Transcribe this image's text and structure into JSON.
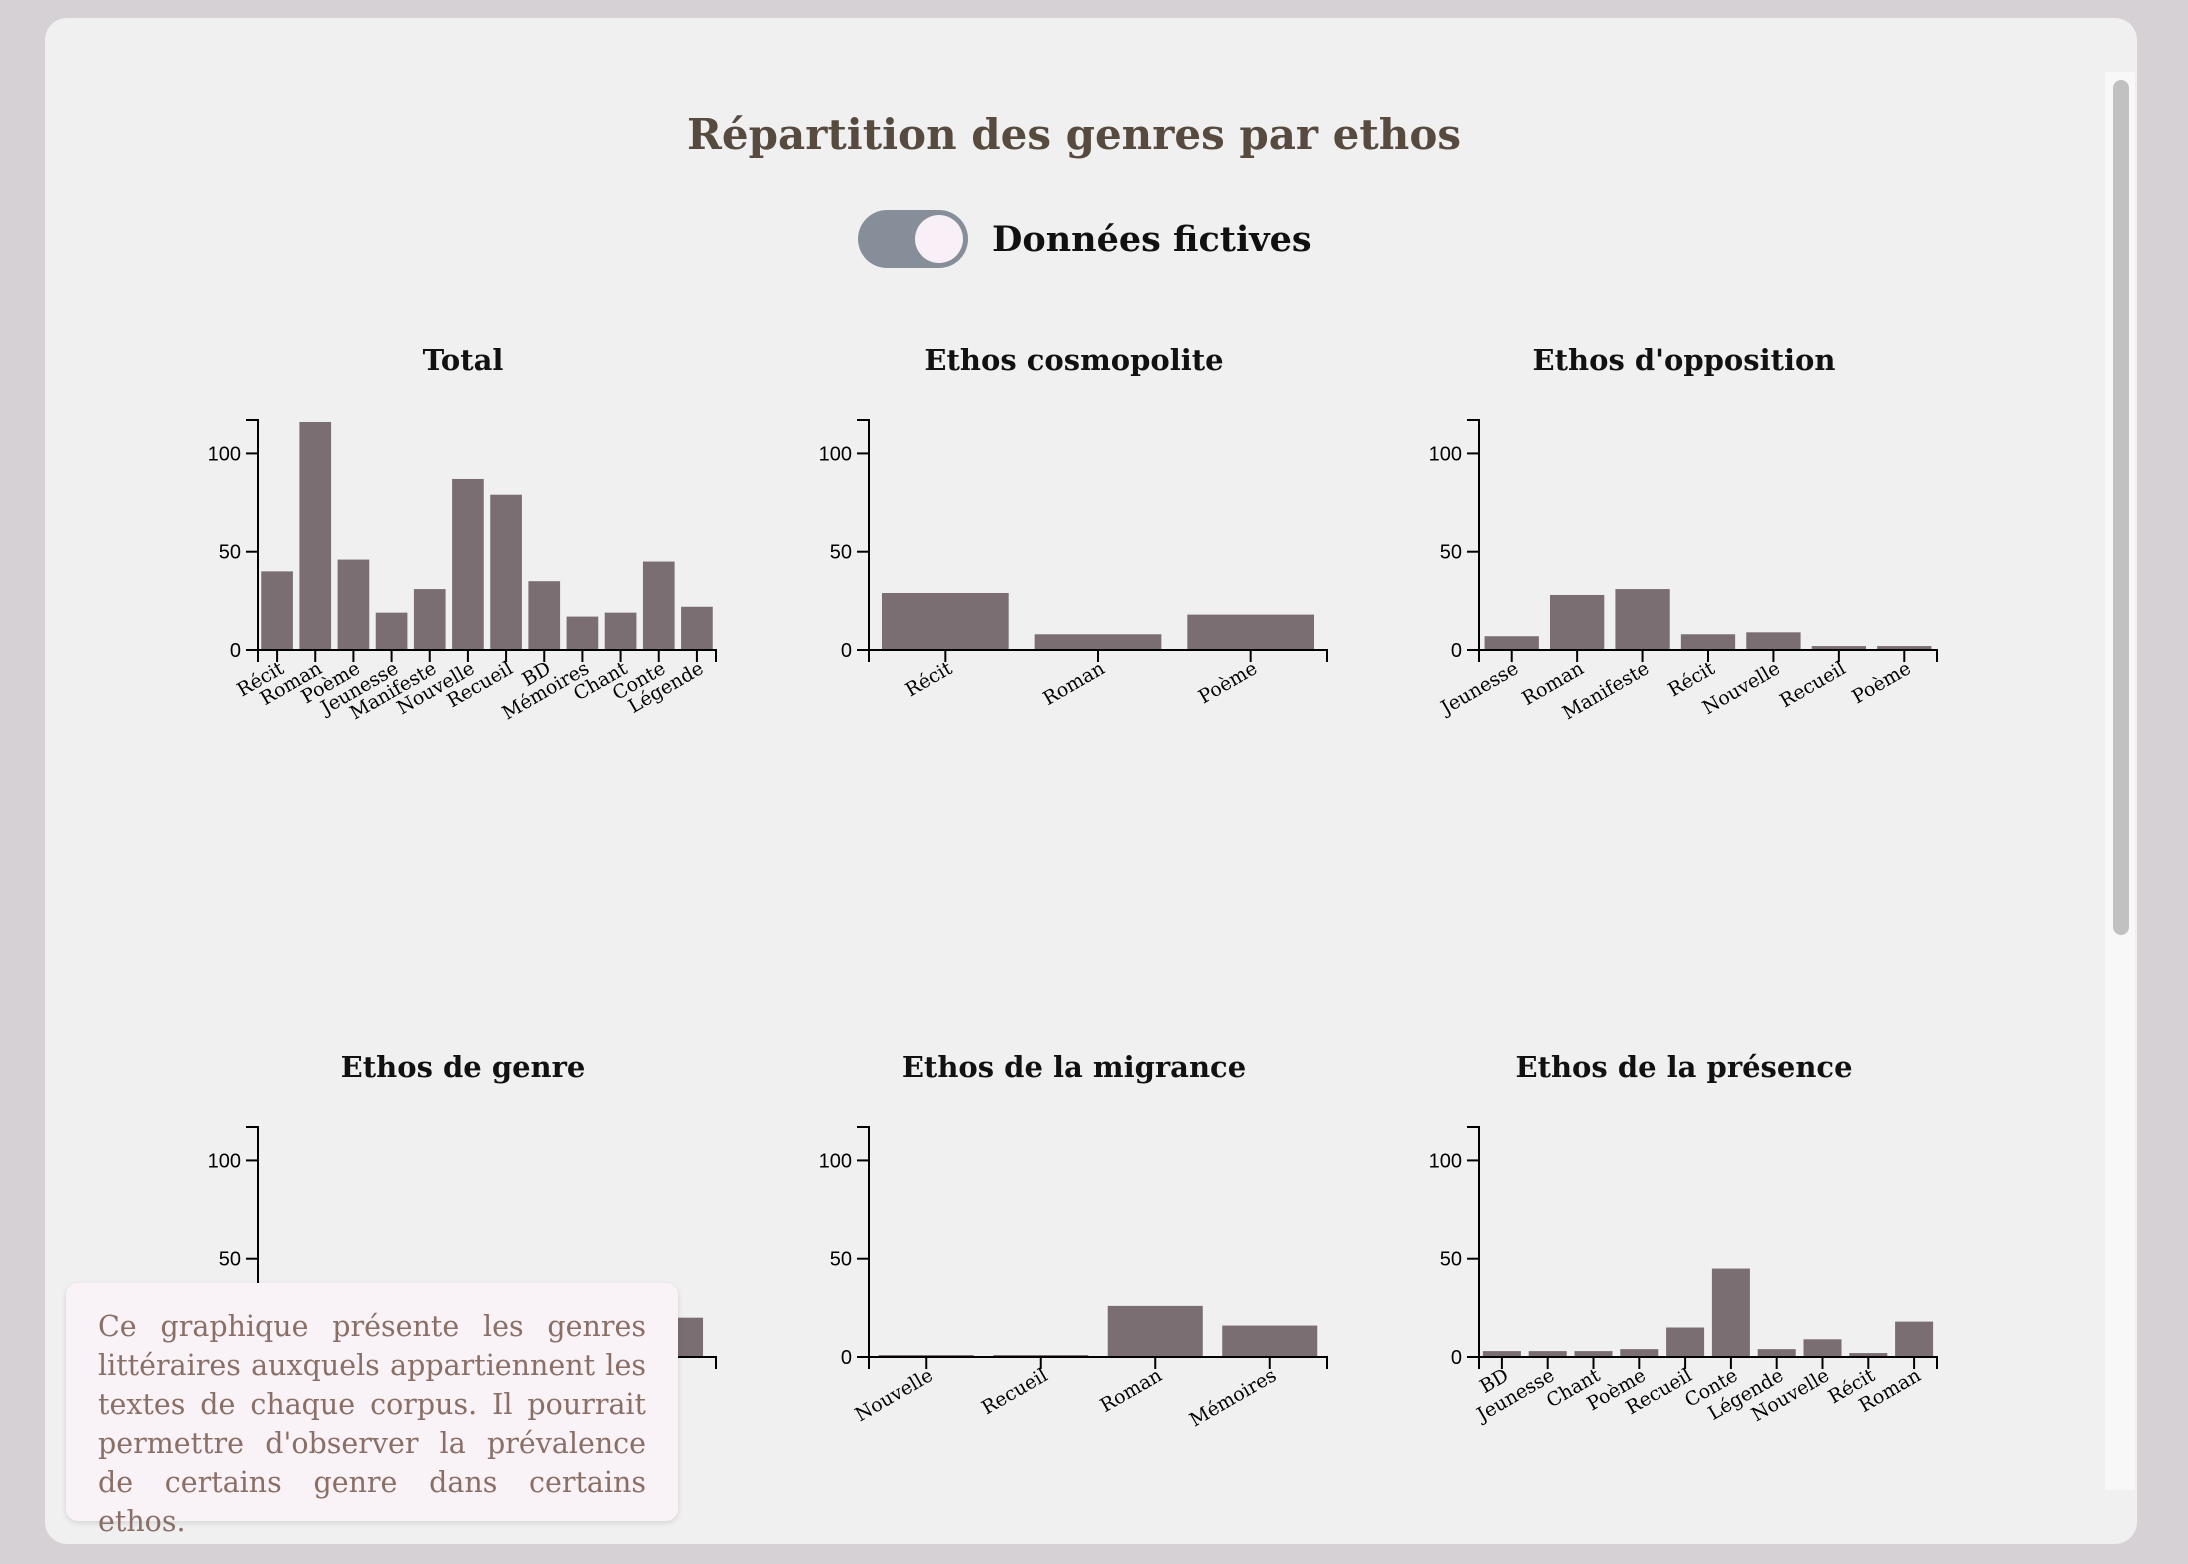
{
  "page_title": "Répartition des genres par ethos",
  "toggle": {
    "label": "Données fictives",
    "checked": true
  },
  "description": "Ce graphique présente les genres littéraires auxquels appartiennent les textes de chaque corpus. Il pourrait permettre d'observer la prévalence de certains genre dans certains ethos.",
  "colors": {
    "bar": "#7a6e73",
    "title": "#574a3f",
    "toggle_track": "#868f99"
  },
  "chart_data": [
    {
      "type": "bar",
      "title": "Total",
      "xlabel": "",
      "ylabel": "",
      "ylim": [
        0,
        117
      ],
      "yticks": [
        0,
        50,
        100
      ],
      "categories": [
        "Récit",
        "Roman",
        "Poème",
        "Jeunesse",
        "Manifeste",
        "Nouvelle",
        "Recueil",
        "BD",
        "Mémoires",
        "Chant",
        "Conte",
        "Légende"
      ],
      "values": [
        40,
        116,
        46,
        19,
        31,
        87,
        79,
        35,
        17,
        19,
        45,
        22
      ]
    },
    {
      "type": "bar",
      "title": "Ethos cosmopolite",
      "xlabel": "",
      "ylabel": "",
      "ylim": [
        0,
        117
      ],
      "yticks": [
        0,
        50,
        100
      ],
      "categories": [
        "Récit",
        "Roman",
        "Poème"
      ],
      "values": [
        29,
        8,
        18
      ]
    },
    {
      "type": "bar",
      "title": "Ethos d'opposition",
      "xlabel": "",
      "ylabel": "",
      "ylim": [
        0,
        117
      ],
      "yticks": [
        0,
        50,
        100
      ],
      "categories": [
        "Jeunesse",
        "Roman",
        "Manifeste",
        "Récit",
        "Nouvelle",
        "Recueil",
        "Poème"
      ],
      "values": [
        7,
        28,
        31,
        8,
        9,
        2,
        2
      ]
    },
    {
      "type": "bar",
      "title": "Ethos de genre",
      "xlabel": "",
      "ylabel": "",
      "ylim": [
        0,
        117
      ],
      "yticks": [
        0,
        50,
        100
      ],
      "categories": [
        "",
        "",
        ""
      ],
      "values": [
        0,
        0,
        20
      ]
    },
    {
      "type": "bar",
      "title": "Ethos de la migrance",
      "xlabel": "",
      "ylabel": "",
      "ylim": [
        0,
        117
      ],
      "yticks": [
        0,
        50,
        100
      ],
      "categories": [
        "Nouvelle",
        "Recueil",
        "Roman",
        "Mémoires"
      ],
      "values": [
        1,
        1,
        26,
        16
      ]
    },
    {
      "type": "bar",
      "title": "Ethos de la présence",
      "xlabel": "",
      "ylabel": "",
      "ylim": [
        0,
        117
      ],
      "yticks": [
        0,
        50,
        100
      ],
      "categories": [
        "BD",
        "Jeunesse",
        "Chant",
        "Poème",
        "Recueil",
        "Conte",
        "Légende",
        "Nouvelle",
        "Récit",
        "Roman"
      ],
      "values": [
        3,
        3,
        3,
        4,
        15,
        45,
        4,
        9,
        2,
        18
      ]
    }
  ]
}
